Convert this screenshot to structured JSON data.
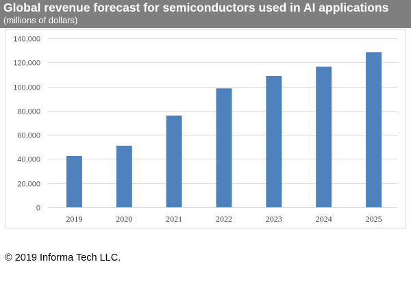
{
  "header": {
    "title": "Global revenue forecast for semiconductors used in AI applications",
    "subtitle": "(millions of dollars)"
  },
  "chart_data": {
    "type": "bar",
    "title": "Global revenue forecast for semiconductors used in AI applications",
    "subtitle": "(millions of dollars)",
    "categories": [
      "2019",
      "2020",
      "2021",
      "2022",
      "2023",
      "2024",
      "2025"
    ],
    "values": [
      42500,
      51000,
      76000,
      98500,
      108800,
      116500,
      128500
    ],
    "ylim": [
      0,
      140000
    ],
    "yticks": [
      0,
      20000,
      40000,
      60000,
      80000,
      100000,
      120000,
      140000
    ],
    "ytick_labels": [
      "0",
      "20,000",
      "40,000",
      "60,000",
      "80,000",
      "100,000",
      "120,000",
      "140,000"
    ],
    "bar_color": "#4f81bd",
    "grid": true,
    "legend": "none"
  },
  "footer": {
    "copyright": "© 2019 Informa Tech LLC."
  }
}
